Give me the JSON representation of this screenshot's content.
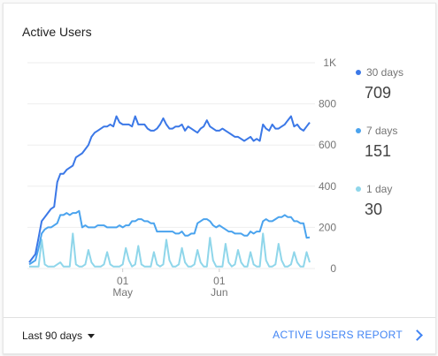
{
  "card": {
    "title": "Active Users"
  },
  "footer": {
    "range_label": "Last 90 days",
    "report_link": "ACTIVE USERS REPORT"
  },
  "colors": {
    "d30": "#3b78e7",
    "d7": "#4aa3ee",
    "d1": "#8fd6ea",
    "grid": "#eeeeee",
    "link": "#4285f4"
  },
  "legend": [
    {
      "label": "30 days",
      "value": "709",
      "color": "#3b78e7"
    },
    {
      "label": "7 days",
      "value": "151",
      "color": "#4aa3ee"
    },
    {
      "label": "1 day",
      "value": "30",
      "color": "#8fd6ea"
    }
  ],
  "chart_data": {
    "type": "line",
    "title": "",
    "xlabel": "",
    "ylabel": "",
    "y_ticks": [
      "1K",
      "800",
      "600",
      "400",
      "200",
      "0"
    ],
    "y_tick_values": [
      1000,
      800,
      600,
      400,
      200,
      0
    ],
    "x_ticks": [
      {
        "day": "01",
        "month": "May",
        "index": 30
      },
      {
        "day": "01",
        "month": "Jun",
        "index": 61
      }
    ],
    "ylim": [
      0,
      1000
    ],
    "grid": true,
    "legend_position": "right",
    "series": [
      {
        "name": "30 days",
        "values": [
          30,
          50,
          70,
          150,
          230,
          250,
          270,
          290,
          300,
          420,
          460,
          460,
          480,
          490,
          500,
          540,
          550,
          560,
          580,
          600,
          640,
          660,
          670,
          680,
          690,
          690,
          700,
          690,
          740,
          710,
          700,
          700,
          700,
          690,
          740,
          700,
          700,
          700,
          680,
          670,
          670,
          680,
          700,
          730,
          700,
          680,
          680,
          690,
          690,
          700,
          670,
          690,
          680,
          670,
          660,
          680,
          690,
          720,
          690,
          680,
          670,
          670,
          680,
          670,
          660,
          650,
          640,
          640,
          630,
          620,
          630,
          640,
          620,
          630,
          620,
          700,
          680,
          670,
          700,
          680,
          680,
          690,
          700,
          720,
          740,
          690,
          700,
          680,
          670,
          690,
          710
        ]
      },
      {
        "name": "7 days",
        "values": [
          20,
          30,
          40,
          100,
          170,
          190,
          200,
          200,
          210,
          220,
          260,
          260,
          270,
          260,
          270,
          270,
          280,
          200,
          210,
          200,
          200,
          200,
          210,
          210,
          210,
          200,
          200,
          200,
          200,
          210,
          200,
          210,
          210,
          230,
          230,
          240,
          240,
          230,
          230,
          220,
          220,
          180,
          180,
          180,
          180,
          180,
          180,
          170,
          170,
          180,
          160,
          160,
          170,
          170,
          220,
          230,
          240,
          240,
          230,
          210,
          200,
          210,
          200,
          190,
          180,
          180,
          170,
          170,
          170,
          160,
          160,
          180,
          170,
          180,
          180,
          230,
          240,
          230,
          230,
          240,
          250,
          250,
          260,
          250,
          250,
          230,
          230,
          220,
          220,
          150,
          151
        ]
      },
      {
        "name": "1 day",
        "values": [
          10,
          10,
          10,
          10,
          140,
          20,
          10,
          10,
          10,
          20,
          30,
          10,
          10,
          10,
          170,
          20,
          10,
          10,
          20,
          90,
          30,
          10,
          10,
          10,
          20,
          80,
          20,
          10,
          10,
          10,
          20,
          100,
          40,
          10,
          20,
          110,
          20,
          10,
          10,
          10,
          80,
          20,
          10,
          20,
          140,
          40,
          10,
          10,
          20,
          100,
          30,
          10,
          10,
          20,
          90,
          30,
          10,
          10,
          150,
          40,
          10,
          10,
          10,
          120,
          30,
          10,
          20,
          90,
          30,
          10,
          10,
          80,
          20,
          10,
          10,
          170,
          40,
          10,
          10,
          20,
          120,
          40,
          10,
          10,
          20,
          80,
          30,
          10,
          10,
          80,
          30
        ]
      }
    ]
  }
}
